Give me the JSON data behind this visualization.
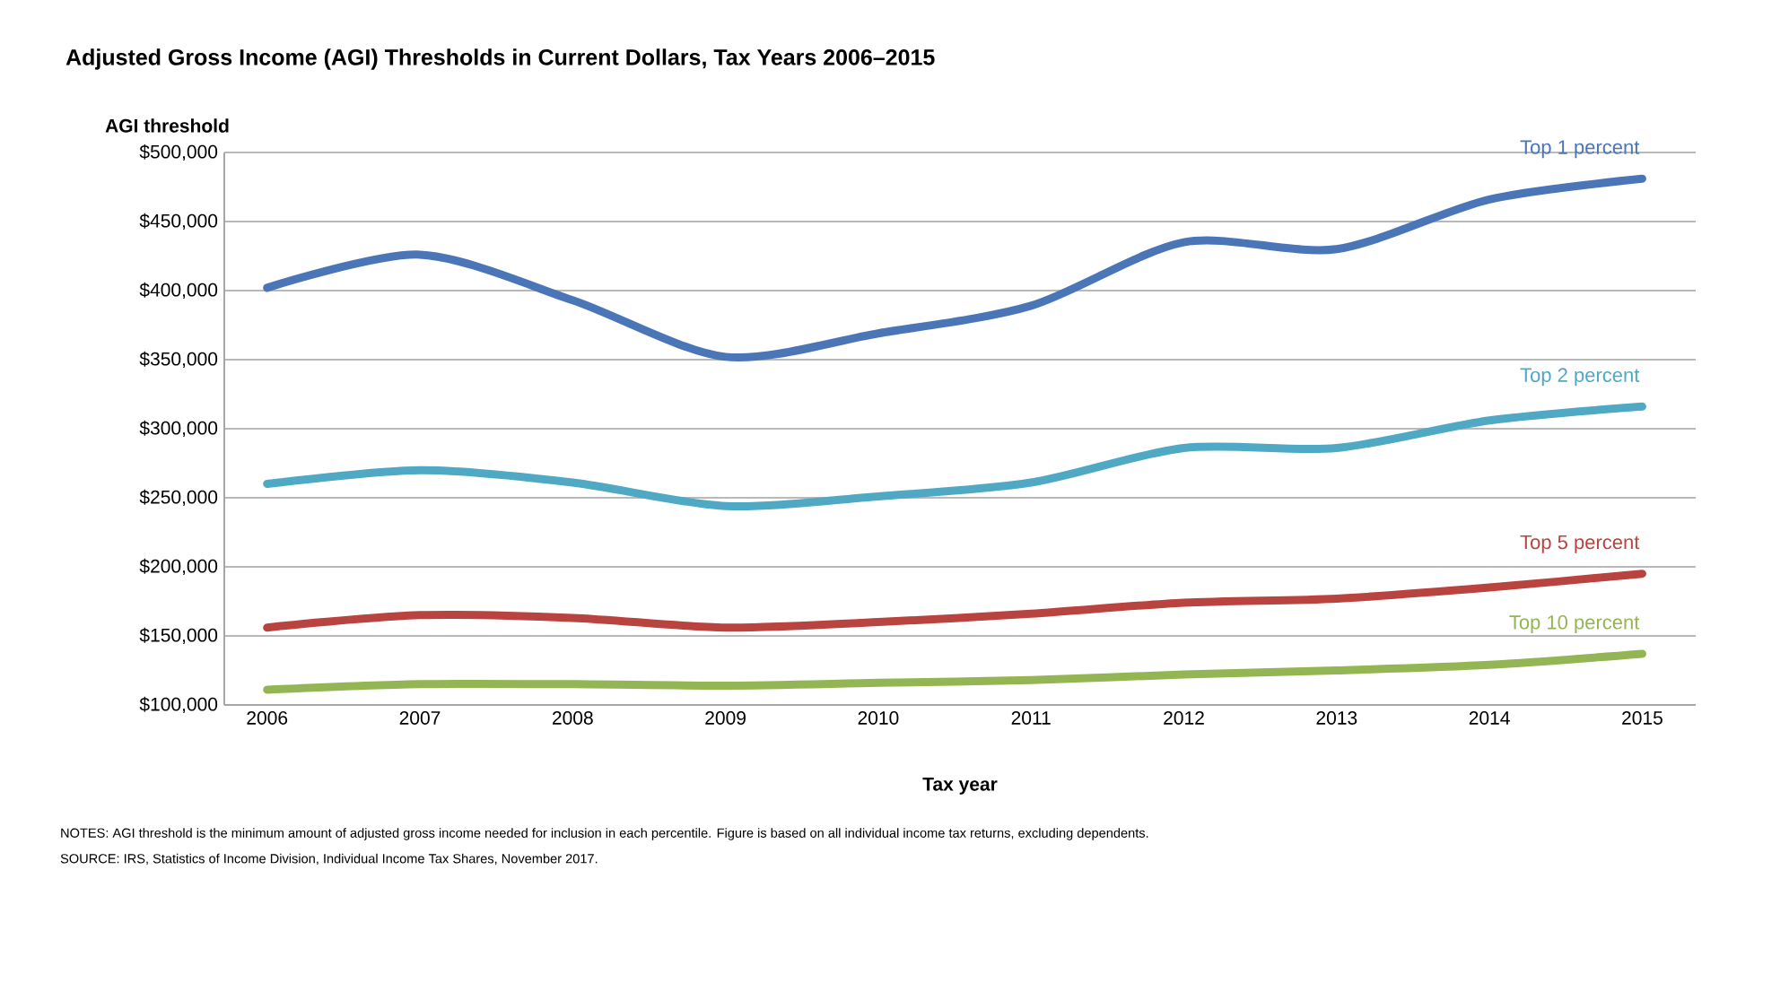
{
  "chart_data": {
    "type": "line",
    "title": "Adjusted Gross Income (AGI) Thresholds in Current Dollars, Tax Years 2006–2015",
    "ylabel": "AGI threshold",
    "xlabel": "Tax year",
    "categories": [
      "2006",
      "2007",
      "2008",
      "2009",
      "2010",
      "2011",
      "2012",
      "2013",
      "2014",
      "2015"
    ],
    "series": [
      {
        "name": "Top 1 percent",
        "color": "#4a76b8",
        "values": [
          402000,
          426000,
          393000,
          352000,
          369000,
          389000,
          435000,
          430000,
          466000,
          481000
        ]
      },
      {
        "name": "Top 2 percent",
        "color": "#4fa9c4",
        "values": [
          260000,
          270000,
          261000,
          244000,
          251000,
          261000,
          286000,
          286000,
          306000,
          316000
        ]
      },
      {
        "name": "Top 5 percent",
        "color": "#b9443f",
        "values": [
          156000,
          165000,
          163000,
          156000,
          160000,
          166000,
          174000,
          177000,
          185000,
          195000
        ]
      },
      {
        "name": "Top 10 percent",
        "color": "#94b553",
        "values": [
          111000,
          115000,
          115000,
          114000,
          116000,
          118000,
          122000,
          125000,
          129000,
          137000
        ]
      }
    ],
    "ylim": [
      100000,
      500000
    ],
    "yticks": [
      {
        "value": 100000,
        "label": "$100,000"
      },
      {
        "value": 150000,
        "label": "$150,000"
      },
      {
        "value": 200000,
        "label": "$200,000"
      },
      {
        "value": 250000,
        "label": "$250,000"
      },
      {
        "value": 300000,
        "label": "$300,000"
      },
      {
        "value": 350000,
        "label": "$350,000"
      },
      {
        "value": 400000,
        "label": "$400,000"
      },
      {
        "value": 450000,
        "label": "$450,000"
      },
      {
        "value": 500000,
        "label": "$500,000"
      }
    ],
    "grid": "y",
    "marker": "none",
    "line_style": "solid",
    "annotations": [
      "NOTES: AGI threshold is the minimum amount of adjusted gross income needed for inclusion in each percentile. Figure is based on all individual income tax returns, excluding dependents.",
      "SOURCE: IRS, Statistics of Income Division, Individual Income Tax Shares, November 2017."
    ]
  }
}
